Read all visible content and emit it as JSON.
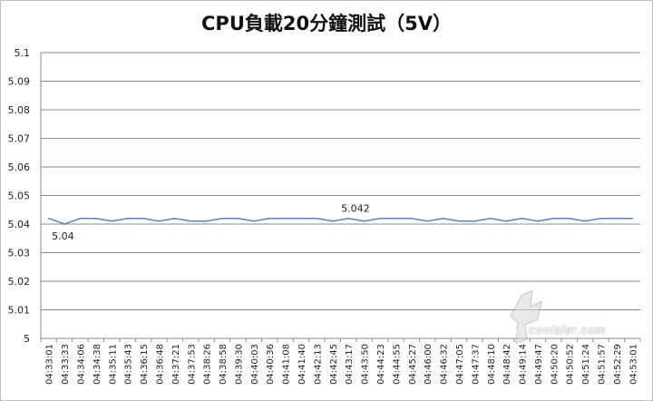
{
  "chart_data": {
    "type": "line",
    "title": "CPU負載20分鐘測試（5V）",
    "xlabel": "",
    "ylabel": "",
    "ylim": [
      5,
      5.1
    ],
    "yticks": [
      "5.1",
      "5.09",
      "5.08",
      "5.07",
      "5.06",
      "5.05",
      "5.04",
      "5.03",
      "5.02",
      "5.01",
      "5"
    ],
    "grid": true,
    "legend": "none",
    "line_color": "#5b83b7",
    "x": [
      "04:33:01",
      "04:33:33",
      "04:34:06",
      "04:34:38",
      "04:35:11",
      "04:35:43",
      "04:36:15",
      "04:36:48",
      "04:37:21",
      "04:37:53",
      "04:38:26",
      "04:38:58",
      "04:39:30",
      "04:40:03",
      "04:40:36",
      "04:41:08",
      "04:41:40",
      "04:42:13",
      "04:42:45",
      "04:43:17",
      "04:43:50",
      "04:44:23",
      "04:44:55",
      "04:45:27",
      "04:46:00",
      "04:46:32",
      "04:47:05",
      "04:47:37",
      "04:48:10",
      "04:48:42",
      "04:49:14",
      "04:49:47",
      "04:50:20",
      "04:50:52",
      "04:51:24",
      "04:51:57",
      "04:52:29",
      "04:53:01"
    ],
    "values": [
      5.042,
      5.04,
      5.042,
      5.042,
      5.041,
      5.042,
      5.042,
      5.041,
      5.042,
      5.041,
      5.041,
      5.042,
      5.042,
      5.041,
      5.042,
      5.042,
      5.042,
      5.042,
      5.041,
      5.042,
      5.041,
      5.042,
      5.042,
      5.042,
      5.041,
      5.042,
      5.041,
      5.041,
      5.042,
      5.041,
      5.042,
      5.041,
      5.042,
      5.042,
      5.041,
      5.042,
      5.042,
      5.042
    ],
    "annotations": [
      {
        "text": "5.04",
        "x": "04:33:33",
        "y": 5.04
      },
      {
        "text": "5.042",
        "x": "04:43:17",
        "y": 5.042
      }
    ]
  },
  "watermark": {
    "text": "coolaler.com",
    "mark": "酷"
  }
}
